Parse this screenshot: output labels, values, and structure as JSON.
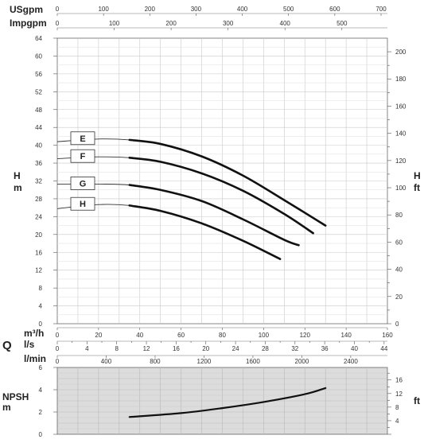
{
  "units": {
    "usgpm": "USgpm",
    "impgpm": "Impgpm",
    "h": "H",
    "m": "m",
    "ft": "ft",
    "q": "Q",
    "m3h": "m³/h",
    "ls": "l/s",
    "lmin": "l/min",
    "npsh": "NPSH",
    "npsh_m": "m",
    "npsh_ft": "ft"
  },
  "chart_data": {
    "type": "line",
    "title": "",
    "xlabel": "Q",
    "ylabel": "H",
    "x_unit": "m³/h",
    "xlim": [
      0,
      160
    ],
    "ylim": [
      0,
      64
    ],
    "grid": true,
    "axes": {
      "usgpm_ticks": [
        "0",
        "100",
        "200",
        "300",
        "400",
        "500",
        "600",
        "700"
      ],
      "usgpm_range": [
        0,
        700
      ],
      "impgpm_ticks": [
        "0",
        "100",
        "200",
        "300",
        "400",
        "500"
      ],
      "impgpm_range": [
        0,
        580
      ],
      "head_m_ticks": [
        "0",
        "4",
        "8",
        "12",
        "16",
        "20",
        "24",
        "28",
        "32",
        "36",
        "40",
        "44",
        "48",
        "52",
        "56",
        "60",
        "64"
      ],
      "head_ft_ticks": [
        "0",
        "20",
        "40",
        "60",
        "80",
        "100",
        "120",
        "140",
        "160",
        "180",
        "200"
      ],
      "m3h_ticks": [
        "0",
        "20",
        "40",
        "60",
        "80",
        "100",
        "120",
        "140",
        "160"
      ],
      "ls_ticks": [
        "0",
        "4",
        "8",
        "12",
        "16",
        "20",
        "24",
        "28",
        "32",
        "36",
        "40",
        "44"
      ],
      "lmin_ticks": [
        "0",
        "400",
        "800",
        "1200",
        "1600",
        "2000",
        "2400"
      ],
      "lmin_range": [
        0,
        2700
      ],
      "npsh_m_ticks": [
        "0",
        "2",
        "4",
        "6"
      ],
      "npsh_ylim": [
        0,
        6
      ],
      "npsh_ft_ticks": [
        "4",
        "8",
        "12",
        "16"
      ]
    },
    "series": [
      {
        "name": "E",
        "x": [
          0,
          20,
          35,
          50,
          70,
          90,
          110,
          130
        ],
        "y": [
          40.8,
          41.4,
          41.2,
          40.3,
          37.5,
          33.2,
          27.7,
          22.0
        ]
      },
      {
        "name": "F",
        "x": [
          0,
          20,
          35,
          50,
          70,
          90,
          110,
          124
        ],
        "y": [
          37.0,
          37.4,
          37.2,
          36.3,
          33.7,
          29.8,
          24.6,
          20.3
        ]
      },
      {
        "name": "G",
        "x": [
          0,
          20,
          35,
          50,
          70,
          90,
          110,
          117
        ],
        "y": [
          31.3,
          31.3,
          31.1,
          30.0,
          27.5,
          23.4,
          18.8,
          17.6
        ]
      },
      {
        "name": "H",
        "x": [
          0,
          20,
          35,
          50,
          70,
          90,
          108
        ],
        "y": [
          25.8,
          26.7,
          26.5,
          25.3,
          22.5,
          18.6,
          14.5
        ]
      }
    ],
    "npsh": {
      "x": [
        35,
        60,
        80,
        100,
        120,
        130
      ],
      "y": [
        1.55,
        1.9,
        2.35,
        2.9,
        3.6,
        4.15
      ]
    }
  }
}
